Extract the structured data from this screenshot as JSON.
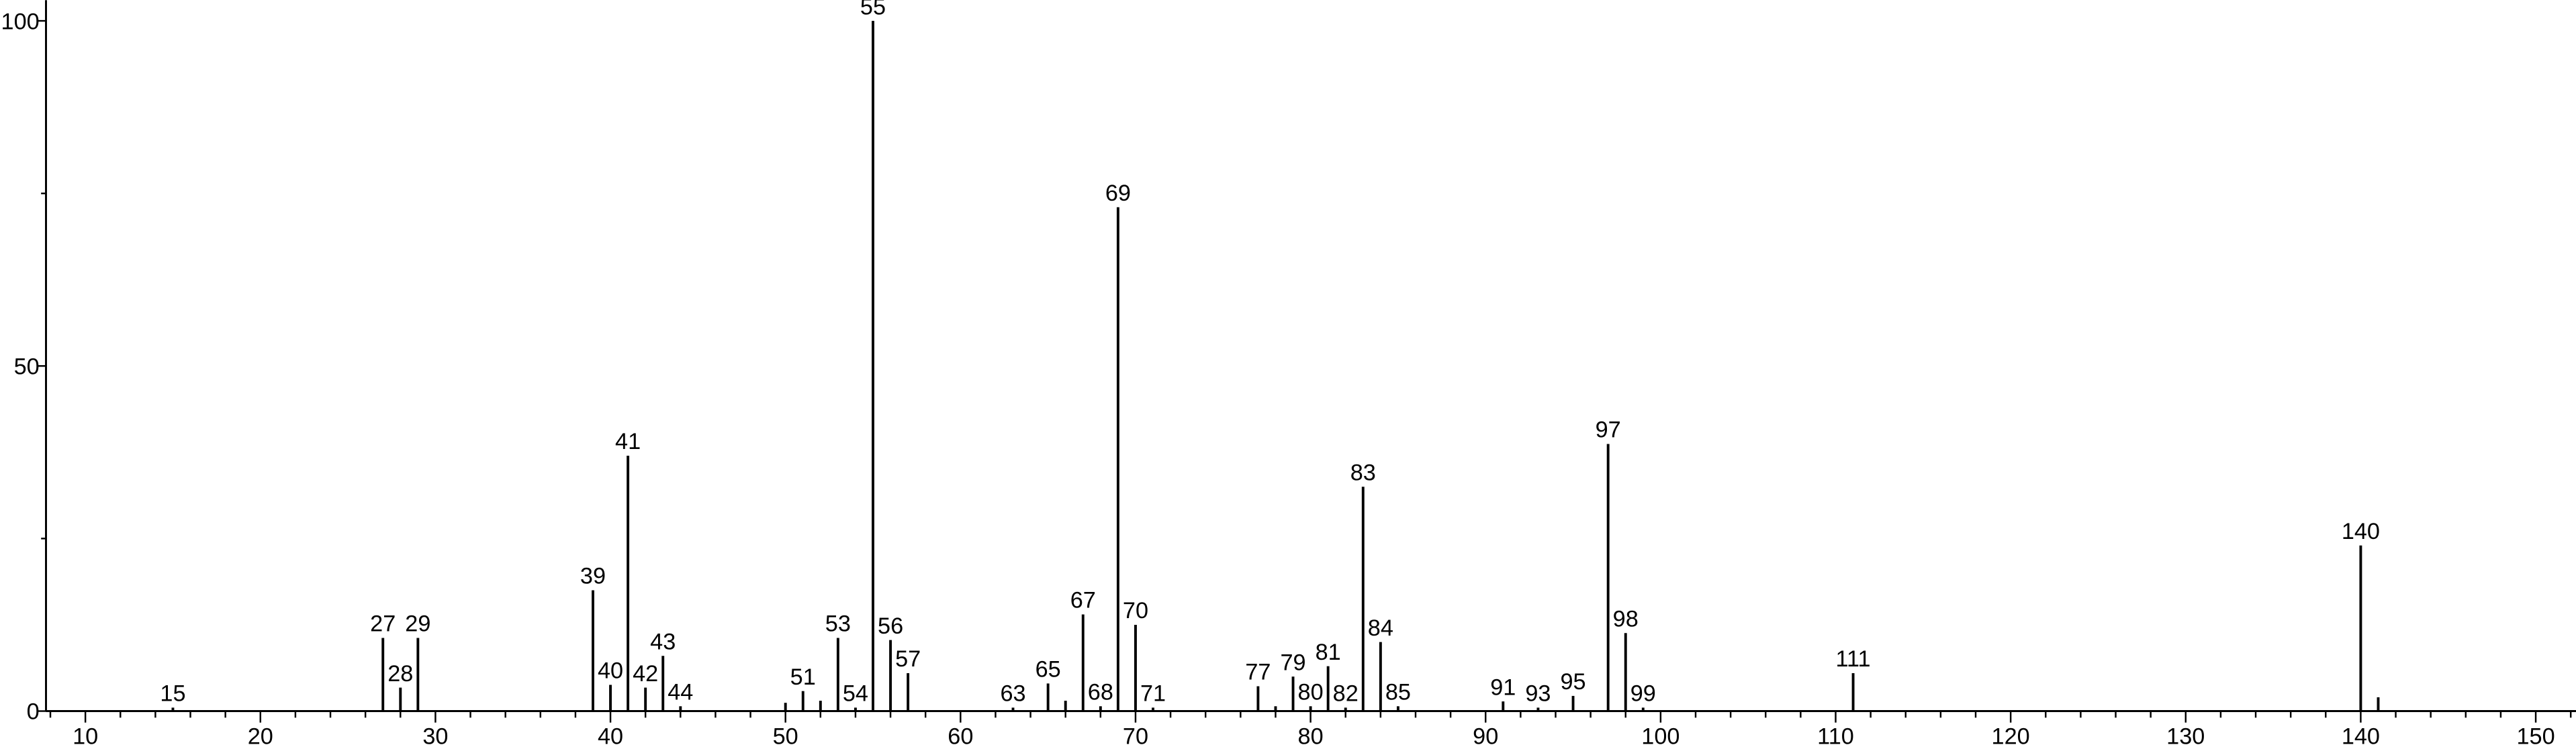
{
  "chart_data": {
    "type": "stick",
    "x": [
      15,
      27,
      28,
      29,
      39,
      40,
      41,
      42,
      43,
      44,
      51,
      53,
      54,
      55,
      56,
      57,
      63,
      65,
      67,
      68,
      69,
      70,
      71,
      77,
      79,
      80,
      81,
      82,
      83,
      84,
      85,
      91,
      93,
      95,
      97,
      98,
      99,
      111,
      140
    ],
    "values": [
      0.5,
      10.6,
      3.4,
      10.6,
      17.5,
      3.8,
      37,
      3.4,
      8,
      0.7,
      2.9,
      10.6,
      0.5,
      100,
      10.3,
      5.5,
      0.5,
      4,
      14,
      0.7,
      73,
      12.5,
      0.5,
      3.6,
      5,
      0.7,
      6.5,
      0.5,
      32.5,
      10,
      0.7,
      1.4,
      0.5,
      2.2,
      38.7,
      11.3,
      0.5,
      5.5,
      24
    ],
    "unlabeled_x": [
      50,
      52,
      66,
      78,
      141
    ],
    "unlabeled_values": [
      1.2,
      1.5,
      1.5,
      0.7,
      2
    ],
    "color": "#000000",
    "xlim": [
      7.75,
      152.3
    ],
    "ylim": [
      0,
      103
    ],
    "xticks": [
      10,
      20,
      30,
      40,
      50,
      60,
      70,
      80,
      90,
      100,
      110,
      120,
      130,
      140,
      150
    ],
    "x_minor_ticks": [
      8,
      12,
      14,
      16,
      18,
      22,
      24,
      26,
      28,
      32,
      34,
      36,
      38,
      42,
      44,
      46,
      48,
      52,
      54,
      56,
      58,
      62,
      64,
      66,
      68,
      72,
      74,
      76,
      78,
      82,
      84,
      86,
      88,
      92,
      94,
      96,
      98,
      102,
      104,
      106,
      108,
      112,
      114,
      116,
      118,
      122,
      124,
      126,
      128,
      132,
      134,
      136,
      138,
      142,
      144,
      146,
      148,
      152
    ],
    "yticks": [
      0,
      50,
      100
    ],
    "y_minor_ticks": [
      25,
      75
    ]
  }
}
